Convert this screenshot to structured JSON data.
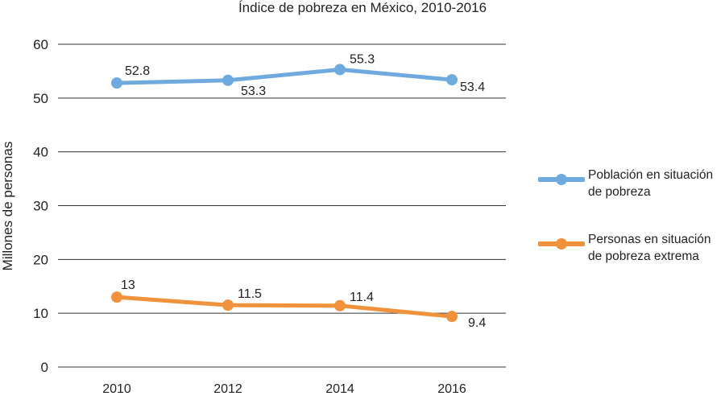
{
  "chart_data": {
    "type": "line",
    "title": "Índice de pobreza en México, 2010-2016",
    "xlabel": "",
    "ylabel": "Millones de personas",
    "categories": [
      "2010",
      "2012",
      "2014",
      "2016"
    ],
    "ylim": [
      0,
      60
    ],
    "yticks": [
      0,
      10,
      20,
      30,
      40,
      50,
      60
    ],
    "grid": "horizontal",
    "legend_position": "right",
    "series": [
      {
        "name": "Población en situación de pobreza",
        "values": [
          52.8,
          53.3,
          55.3,
          53.4
        ],
        "labels": [
          "52.8",
          "53.3",
          "55.3",
          "53.4"
        ],
        "color": "#6faadf"
      },
      {
        "name": "Personas en situación de pobreza extrema",
        "values": [
          13,
          11.5,
          11.4,
          9.4
        ],
        "labels": [
          "13",
          "11.5",
          "11.4",
          "9.4"
        ],
        "color": "#f0923b"
      }
    ]
  }
}
